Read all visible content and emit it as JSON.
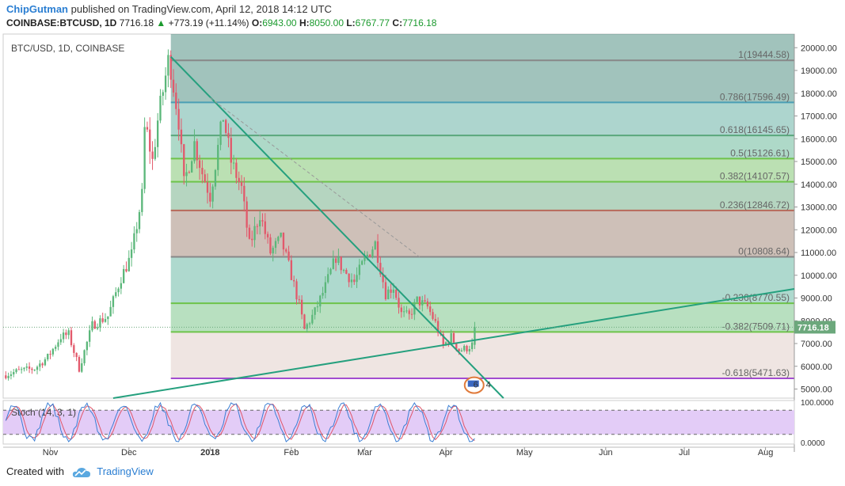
{
  "header": {
    "author": "ChipGutman",
    "published_text": "published on TradingView.com, April 12, 2018 14:12 UTC",
    "symbol": "COINBASE:BTCUSD, 1D",
    "last": "7716.18",
    "change_arrow": "▲",
    "change": "+773.19 (+11.14%)",
    "o_label": "O:",
    "o_value": "6943.00",
    "h_label": "H:",
    "h_value": "8050.00",
    "l_label": "L:",
    "l_value": "6767.77",
    "c_label": "C:",
    "c_value": "7716.18"
  },
  "footer": {
    "created_with": "Created with",
    "brand": "TradingView",
    "logo_icon": "tradingview-cloud-icon"
  },
  "colors": {
    "up": "#5bb77a",
    "down": "#e2596b",
    "fib_green": "#6ec34a",
    "trend": "#25a07e",
    "stoch_k": "#3b7fd4",
    "stoch_d": "#e0566a",
    "stoch_bg": "#e3ccf7",
    "price_tag": "#6ca87c"
  },
  "chart_data": {
    "type": "candlestick",
    "title": "BTC/USD, 1D, COINBASE",
    "ylim": [
      4600,
      20600
    ],
    "y_ticks": [
      "20000.00",
      "19000.00",
      "18000.00",
      "17000.00",
      "16000.00",
      "15000.00",
      "14000.00",
      "13000.00",
      "12000.00",
      "11000.00",
      "10000.00",
      "9000.00",
      "8000.00",
      "7000.00",
      "6000.00",
      "5000.00"
    ],
    "x_ticks": [
      {
        "label": "Nov",
        "date": "2017-11-01"
      },
      {
        "label": "Dec",
        "date": "2017-12-01"
      },
      {
        "label": "2018",
        "date": "2018-01-01"
      },
      {
        "label": "Feb",
        "date": "2018-02-01"
      },
      {
        "label": "Mar",
        "date": "2018-03-01"
      },
      {
        "label": "Apr",
        "date": "2018-04-01"
      },
      {
        "label": "May",
        "date": "2018-05-01"
      },
      {
        "label": "Jun",
        "date": "2018-06-01"
      },
      {
        "label": "Jul",
        "date": "2018-07-01"
      },
      {
        "label": "Aug",
        "date": "2018-08-01"
      }
    ],
    "x_range": [
      "2017-10-14",
      "2018-08-12"
    ],
    "last_price": "7716.18",
    "anchors": [
      [
        "2017-10-14",
        5600
      ],
      [
        "2017-10-20",
        5800
      ],
      [
        "2017-10-26",
        5900
      ],
      [
        "2017-10-31",
        6400
      ],
      [
        "2017-11-05",
        7300
      ],
      [
        "2017-11-08",
        7400
      ],
      [
        "2017-11-12",
        5900
      ],
      [
        "2017-11-17",
        7800
      ],
      [
        "2017-11-23",
        8200
      ],
      [
        "2017-11-28",
        9900
      ],
      [
        "2017-12-02",
        10900
      ],
      [
        "2017-12-06",
        13500
      ],
      [
        "2017-12-07",
        16400
      ],
      [
        "2017-12-08",
        16200
      ],
      [
        "2017-12-10",
        15000
      ],
      [
        "2017-12-12",
        16800
      ],
      [
        "2017-12-16",
        19400
      ],
      [
        "2017-12-17",
        19100
      ],
      [
        "2017-12-20",
        16800
      ],
      [
        "2017-12-22",
        14000
      ],
      [
        "2017-12-26",
        15800
      ],
      [
        "2017-12-29",
        14500
      ],
      [
        "2018-01-01",
        13500
      ],
      [
        "2018-01-06",
        17000
      ],
      [
        "2018-01-09",
        15000
      ],
      [
        "2018-01-13",
        13800
      ],
      [
        "2018-01-16",
        11300
      ],
      [
        "2018-01-20",
        12700
      ],
      [
        "2018-01-24",
        11000
      ],
      [
        "2018-01-28",
        11600
      ],
      [
        "2018-02-01",
        10000
      ],
      [
        "2018-02-04",
        8700
      ],
      [
        "2018-02-06",
        7600
      ],
      [
        "2018-02-10",
        8400
      ],
      [
        "2018-02-14",
        9500
      ],
      [
        "2018-02-18",
        10800
      ],
      [
        "2018-02-21",
        10200
      ],
      [
        "2018-02-25",
        9700
      ],
      [
        "2018-03-01",
        10700
      ],
      [
        "2018-03-05",
        11400
      ],
      [
        "2018-03-09",
        9200
      ],
      [
        "2018-03-12",
        9500
      ],
      [
        "2018-03-15",
        8300
      ],
      [
        "2018-03-18",
        8200
      ],
      [
        "2018-03-21",
        8900
      ],
      [
        "2018-03-25",
        8600
      ],
      [
        "2018-03-28",
        7900
      ],
      [
        "2018-03-31",
        6900
      ],
      [
        "2018-04-03",
        7300
      ],
      [
        "2018-04-06",
        6700
      ],
      [
        "2018-04-09",
        6800
      ],
      [
        "2018-04-11",
        6943
      ],
      [
        "2018-04-12",
        7716.18
      ]
    ],
    "fib_levels": [
      {
        "ratio": "1",
        "price": 19444.58,
        "label": "1(19444.58)",
        "color": "#888888"
      },
      {
        "ratio": "0.786",
        "price": 17596.49,
        "label": "0.786(17596.49)",
        "color": "#4a9fb5"
      },
      {
        "ratio": "0.618",
        "price": 16145.65,
        "label": "0.618(16145.65)",
        "color": "#5aa77c"
      },
      {
        "ratio": "0.5",
        "price": 15126.61,
        "label": "0.5(15126.61)",
        "color": "#6ec34a"
      },
      {
        "ratio": "0.382",
        "price": 14107.57,
        "label": "0.382(14107.57)",
        "color": "#6ec34a"
      },
      {
        "ratio": "0.236",
        "price": 12846.72,
        "label": "0.236(12846.72)",
        "color": "#b86a5a"
      },
      {
        "ratio": "0",
        "price": 10808.64,
        "label": "0(10808.64)",
        "color": "#888888"
      },
      {
        "ratio": "-0.236",
        "price": 8770.55,
        "label": "-0.236(8770.55)",
        "color": "#6ec34a"
      },
      {
        "ratio": "-0.382",
        "price": 7509.71,
        "label": "-0.382(7509.71)",
        "color": "#6ec34a"
      },
      {
        "ratio": "-0.618",
        "price": 5471.63,
        "label": "-0.618(5471.63)",
        "color": "#a24bd0"
      }
    ],
    "fib_start_date": "2017-12-17",
    "trend_lines": [
      {
        "name": "descending",
        "from": [
          "2017-12-17",
          19600
        ],
        "to": [
          "2018-04-23",
          4600
        ],
        "color": "#25a07e",
        "dash": false
      },
      {
        "name": "ascending",
        "from": [
          "2017-11-25",
          4600
        ],
        "to": [
          "2018-08-12",
          9400
        ],
        "color": "#25a07e",
        "dash": false
      },
      {
        "name": "dashed",
        "from": [
          "2018-01-01",
          17800
        ],
        "to": [
          "2018-03-22",
          10800
        ],
        "color": "#999999",
        "dash": true
      }
    ],
    "events_badge": {
      "date": "2018-04-13",
      "price": 5100,
      "counts": [
        "6",
        "4"
      ]
    },
    "stoch": {
      "label": "Stoch (14, 3, 1)",
      "ylim": [
        0,
        100
      ],
      "y_ticks": [
        "100.0000",
        "0.0000"
      ],
      "bands": [
        80,
        20
      ],
      "bg": "#e3ccf7"
    }
  }
}
